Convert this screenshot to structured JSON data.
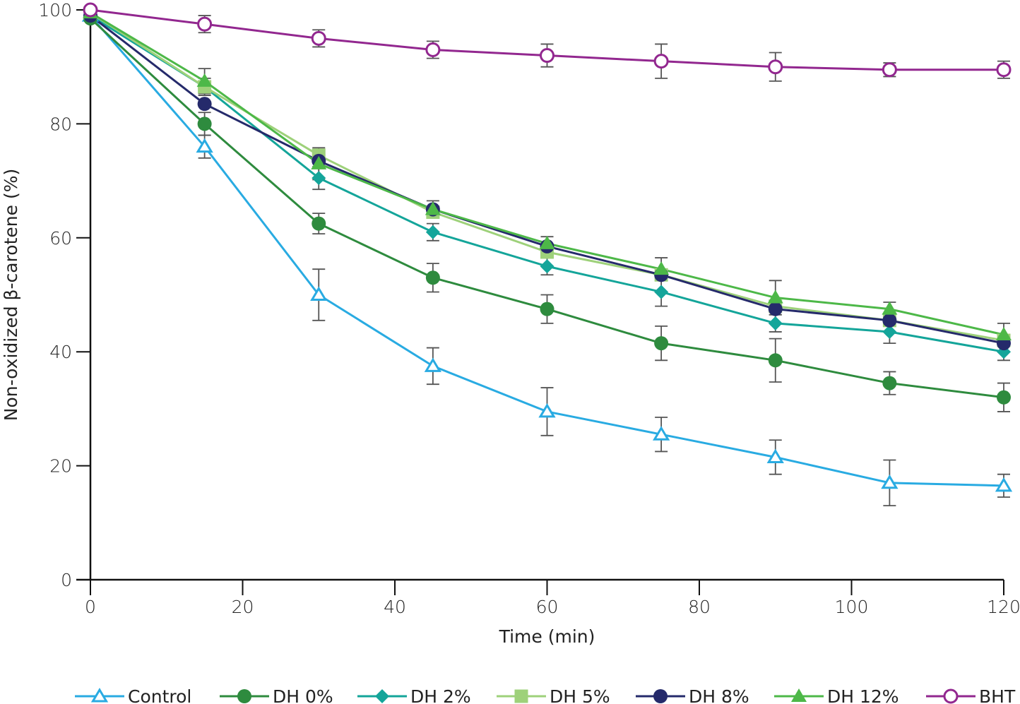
{
  "chart_data": {
    "type": "line",
    "title": "",
    "xlabel": "Time (min)",
    "ylabel": "Non-oxidized β-carotene (%)",
    "xlim": [
      0,
      120
    ],
    "ylim": [
      0,
      100
    ],
    "xticks": [
      0,
      20,
      40,
      60,
      80,
      100,
      120
    ],
    "yticks": [
      0,
      20,
      40,
      60,
      80,
      100
    ],
    "grid": false,
    "legend_position": "bottom",
    "x": [
      0,
      15,
      30,
      45,
      60,
      75,
      90,
      105,
      120
    ],
    "series": [
      {
        "name": "Control",
        "color": "#29abe2",
        "marker": "triangle-open",
        "values": [
          99,
          76,
          50,
          37.5,
          29.5,
          25.5,
          21.5,
          17,
          16.5
        ],
        "errors": [
          0.5,
          2,
          4.5,
          3.2,
          4.2,
          3,
          3,
          4,
          2
        ]
      },
      {
        "name": "DH 0%",
        "color": "#2e8b3e",
        "marker": "circle",
        "values": [
          98.5,
          80,
          62.5,
          53,
          47.5,
          41.5,
          38.5,
          34.5,
          32
        ],
        "errors": [
          0.5,
          2,
          1.8,
          2.5,
          2.5,
          3,
          3.8,
          2,
          2.5
        ]
      },
      {
        "name": "DH 2%",
        "color": "#14a59a",
        "marker": "diamond",
        "values": [
          99,
          86.5,
          70.5,
          61,
          55,
          50.5,
          45,
          43.5,
          40
        ],
        "errors": [
          0.5,
          1.5,
          2,
          1.5,
          1.5,
          2.5,
          1.5,
          2,
          1.5
        ]
      },
      {
        "name": "DH 5%",
        "color": "#9ed17a",
        "marker": "square",
        "values": [
          99.5,
          86.5,
          74.5,
          64.5,
          57.5,
          53.5,
          48,
          45.5,
          42
        ]
      },
      {
        "name": "DH 8%",
        "color": "#252a6b",
        "marker": "circle",
        "values": [
          99,
          83.5,
          73.5,
          65,
          58.5,
          53.5,
          47.5,
          45.5,
          41.5
        ]
      },
      {
        "name": "DH 12%",
        "color": "#4db848",
        "marker": "triangle",
        "values": [
          99.5,
          87.5,
          73,
          65,
          59,
          54.5,
          49.5,
          47.5,
          43
        ],
        "errors": [
          0.5,
          2.2,
          2.8,
          1.5,
          1.2,
          2,
          3,
          1.2,
          2
        ]
      },
      {
        "name": "BHT",
        "color": "#92278f",
        "marker": "circle-open",
        "values": [
          100,
          97.5,
          95,
          93,
          92,
          91,
          90,
          89.5,
          89.5
        ],
        "errors": [
          0.3,
          1.5,
          1.5,
          1.5,
          2,
          3,
          2.5,
          1.2,
          1.5
        ]
      }
    ]
  }
}
